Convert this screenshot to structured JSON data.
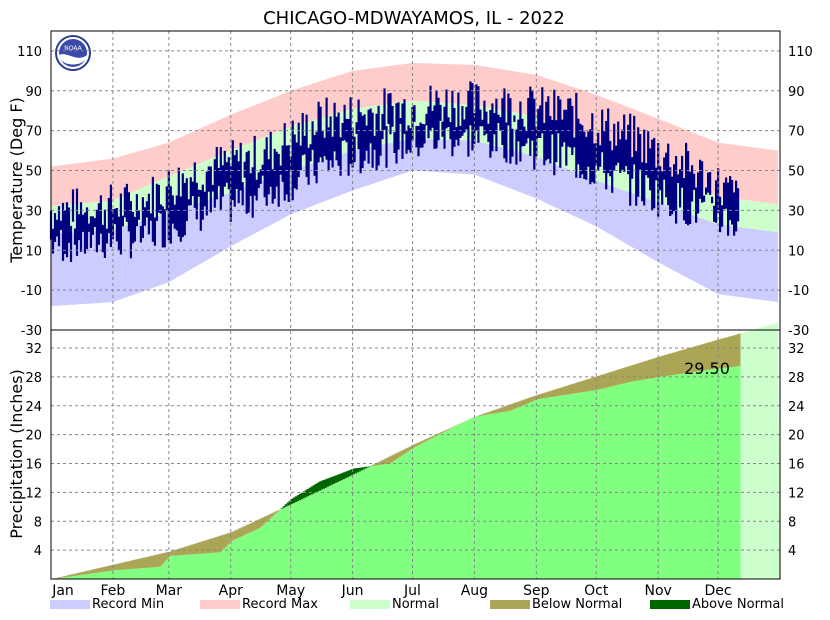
{
  "chart_data": {
    "type": "area",
    "title": "CHICAGO-MDWAYAMOS, IL - 2022",
    "months": [
      "Jan",
      "Feb",
      "Mar",
      "Apr",
      "May",
      "Jun",
      "Jul",
      "Aug",
      "Sep",
      "Oct",
      "Nov",
      "Dec"
    ],
    "grid": true,
    "legend_placement": "bottom",
    "legend": [
      {
        "label": "Record Min",
        "color": "#ccccff"
      },
      {
        "label": "Record Max",
        "color": "#ffcccc"
      },
      {
        "label": "Normal",
        "color": "#ccffcc"
      },
      {
        "label": "Below Normal",
        "color": "#aaa655"
      },
      {
        "label": "Above Normal",
        "color": "#006600"
      }
    ],
    "panels": [
      {
        "name": "temperature",
        "ylabel": "Temperature (Deg F)",
        "ylim": [
          -30,
          120
        ],
        "yticks": [
          -30,
          -10,
          10,
          30,
          50,
          70,
          90,
          110
        ],
        "x_day_of_year": [
          1,
          32,
          60,
          91,
          121,
          152,
          182,
          213,
          244,
          274,
          305,
          335,
          365
        ],
        "record_max": [
          52,
          56,
          64,
          78,
          90,
          100,
          104,
          103,
          98,
          88,
          76,
          64,
          60
        ],
        "normal_high": [
          32,
          35,
          47,
          60,
          72,
          81,
          85,
          83,
          77,
          63,
          49,
          37,
          33
        ],
        "normal_low": [
          18,
          20,
          29,
          39,
          50,
          60,
          66,
          65,
          57,
          45,
          34,
          23,
          19
        ],
        "record_min": [
          -18,
          -16,
          -6,
          12,
          28,
          40,
          50,
          48,
          36,
          22,
          4,
          -12,
          -16
        ],
        "observed_high": [
          30,
          34,
          50,
          57,
          75,
          80,
          84,
          83,
          79,
          68,
          52,
          33
        ],
        "observed_low": [
          14,
          17,
          29,
          38,
          52,
          62,
          67,
          65,
          57,
          44,
          32,
          22
        ],
        "observed_line_color": "#000080",
        "observed_through_doy": 345
      },
      {
        "name": "precipitation",
        "ylabel": "Precipitation (Inches)",
        "ylim": [
          0,
          34.5
        ],
        "yticks": [
          4,
          8,
          12,
          16,
          20,
          24,
          28,
          32
        ],
        "annotation": "29.50",
        "x_day_of_year": [
          1,
          32,
          60,
          91,
          121,
          152,
          182,
          213,
          244,
          274,
          305,
          335,
          365
        ],
        "normal_cumulative": [
          0,
          2.0,
          3.8,
          6.5,
          10.4,
          14.5,
          18.6,
          22.5,
          25.5,
          28.1,
          30.8,
          33.2,
          35.5
        ],
        "observed_cumulative_doy": [
          1,
          32,
          55,
          60,
          85,
          91,
          105,
          121,
          135,
          152,
          170,
          182,
          200,
          213,
          230,
          244,
          255,
          274,
          290,
          305,
          320,
          335,
          345
        ],
        "observed_cumulative": [
          0,
          1.2,
          1.7,
          3.2,
          3.7,
          5.3,
          7.1,
          11.1,
          13.5,
          15.3,
          16.0,
          18.2,
          20.8,
          22.5,
          23.3,
          24.9,
          25.4,
          26.2,
          27.3,
          28.0,
          28.6,
          29.2,
          29.5
        ]
      }
    ]
  }
}
